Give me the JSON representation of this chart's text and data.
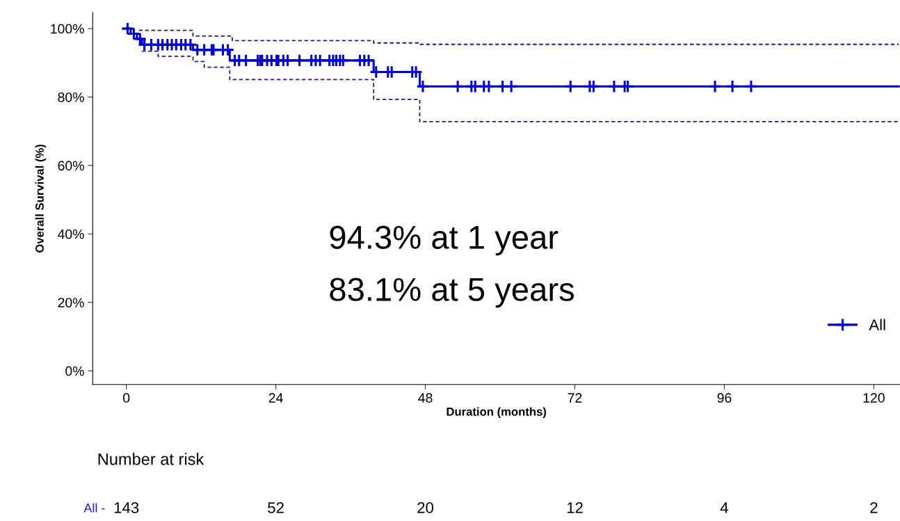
{
  "chart_data": {
    "type": "step",
    "xlabel": "Duration (months)",
    "ylabel": "Overall Survival (%)",
    "xlim": [
      -5.4,
      124.2
    ],
    "xticks": [
      0,
      24,
      48,
      72,
      96,
      120
    ],
    "ylim": [
      -4,
      104.7
    ],
    "yticks": [
      {
        "value": 0,
        "label": "0%"
      },
      {
        "value": 20,
        "label": "20%"
      },
      {
        "value": 40,
        "label": "40%"
      },
      {
        "value": 60,
        "label": "60%"
      },
      {
        "value": 80,
        "label": "80%"
      },
      {
        "value": 100,
        "label": "100%"
      }
    ],
    "grid": false,
    "legend": "bottom right",
    "series": [
      {
        "name": "All",
        "color": "#0000cd",
        "line_style": "solid",
        "x": [
          0,
          0.7,
          1.7,
          2.5,
          10.7,
          16.6,
          39.7,
          47.1,
          124
        ],
        "values": [
          100,
          98.5,
          97,
          95.3,
          93.8,
          90.7,
          87.3,
          83.1,
          83.1
        ]
      },
      {
        "color": "#1c1c80",
        "line_style": "dashed",
        "x": [
          2,
          10.7,
          17,
          39.7,
          47.1,
          124
        ],
        "values": [
          99.5,
          97.8,
          96.5,
          95.8,
          95.4,
          95.4
        ]
      },
      {
        "color": "#1c1c80",
        "line_style": "dashed",
        "x": [
          2.5,
          5.1,
          10.7,
          12.5,
          16.6,
          39.7,
          47.1,
          124
        ],
        "values": [
          93.4,
          91.9,
          90.4,
          88.7,
          85.1,
          79.3,
          72.8,
          72.8
        ]
      },
      {
        "type": "scatter",
        "color": "#0000cd",
        "marker": "cross",
        "x": [
          0.2,
          1.2,
          2.2,
          2.9,
          4.0,
          5.1,
          5.8,
          6.6,
          7.3,
          8.0,
          8.8,
          9.5,
          10.3,
          11.4,
          12.5,
          13.7,
          14.0,
          15.5,
          16.3,
          17.4,
          18.1,
          19.2,
          21.1,
          21.5,
          21.8,
          22.6,
          23.3,
          24.1,
          24.4,
          25.2,
          25.9,
          27.8,
          29.7,
          30.4,
          31.1,
          32.6,
          33.2,
          33.7,
          34.3,
          34.8,
          37.5,
          38.2,
          38.9,
          40.1,
          42.0,
          42.6,
          45.9,
          46.5,
          47.6,
          53.2,
          55.4,
          56.0,
          57.4,
          58.2,
          60.4,
          61.8,
          71.3,
          74.4,
          75.0,
          78.3,
          80.0,
          80.5,
          94.5,
          97.3,
          100.3
        ],
        "values": [
          100,
          98.5,
          97,
          95.3,
          95.3,
          95.3,
          95.3,
          95.3,
          95.3,
          95.3,
          95.3,
          95.3,
          95.3,
          93.8,
          93.8,
          93.8,
          93.8,
          93.8,
          93.8,
          90.7,
          90.7,
          90.7,
          90.7,
          90.7,
          90.7,
          90.7,
          90.7,
          90.7,
          90.7,
          90.7,
          90.7,
          90.7,
          90.7,
          90.7,
          90.7,
          90.7,
          90.7,
          90.7,
          90.7,
          90.7,
          90.7,
          90.7,
          90.7,
          87.3,
          87.3,
          87.3,
          87.3,
          87.3,
          83.1,
          83.1,
          83.1,
          83.1,
          83.1,
          83.1,
          83.1,
          83.1,
          83.1,
          83.1,
          83.1,
          83.1,
          83.1,
          83.1,
          83.1,
          83.1,
          83.1
        ]
      }
    ],
    "annotations": [
      "94.3% at 1 year",
      "83.1% at 5 years",
      "Number at risk",
      "All -",
      "143",
      "52",
      "20",
      "12",
      "4",
      "2"
    ]
  }
}
